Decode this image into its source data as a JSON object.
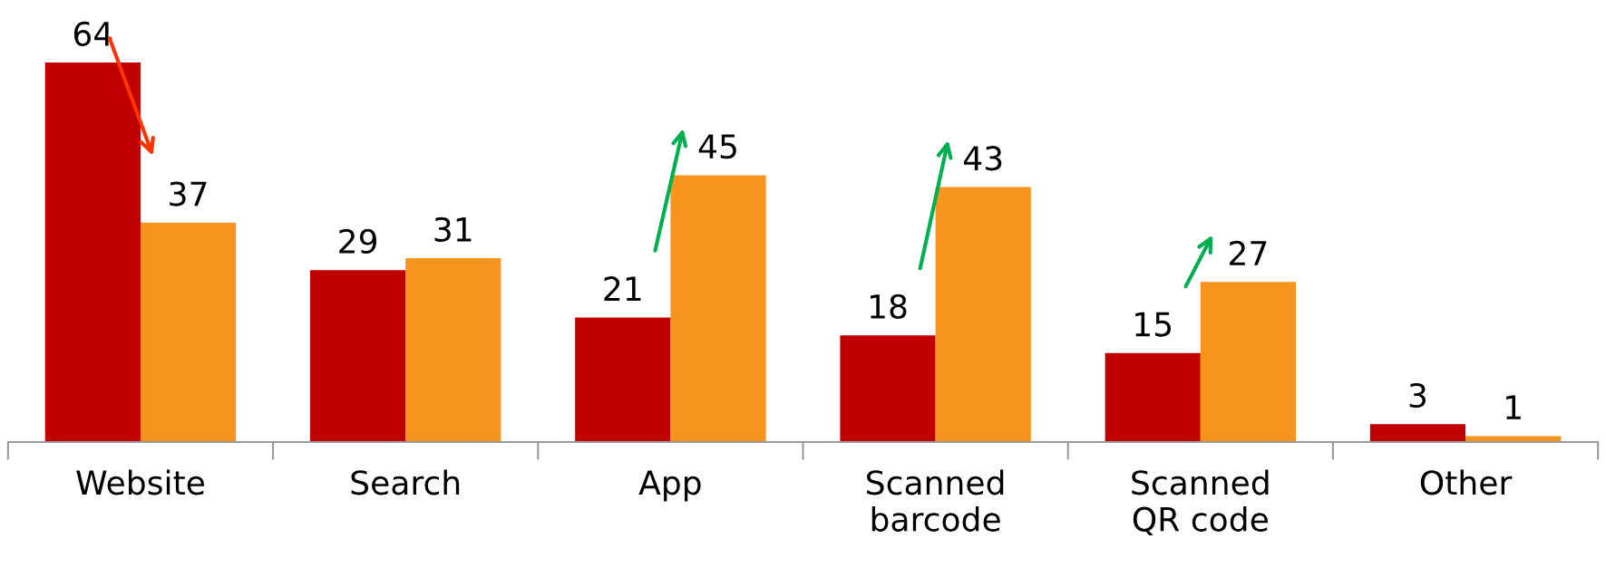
{
  "chart_data": {
    "type": "bar",
    "categories": [
      "Website",
      "Search",
      "App",
      "Scanned\nbarcode",
      "Scanned\nQR code",
      "Other"
    ],
    "series": [
      {
        "color": "#c00000",
        "values": [
          64,
          29,
          21,
          18,
          15,
          3
        ]
      },
      {
        "color": "#f7941d",
        "values": [
          37,
          31,
          45,
          43,
          27,
          1
        ]
      }
    ],
    "data_labels": true,
    "grid": false,
    "legend": false
  }
}
